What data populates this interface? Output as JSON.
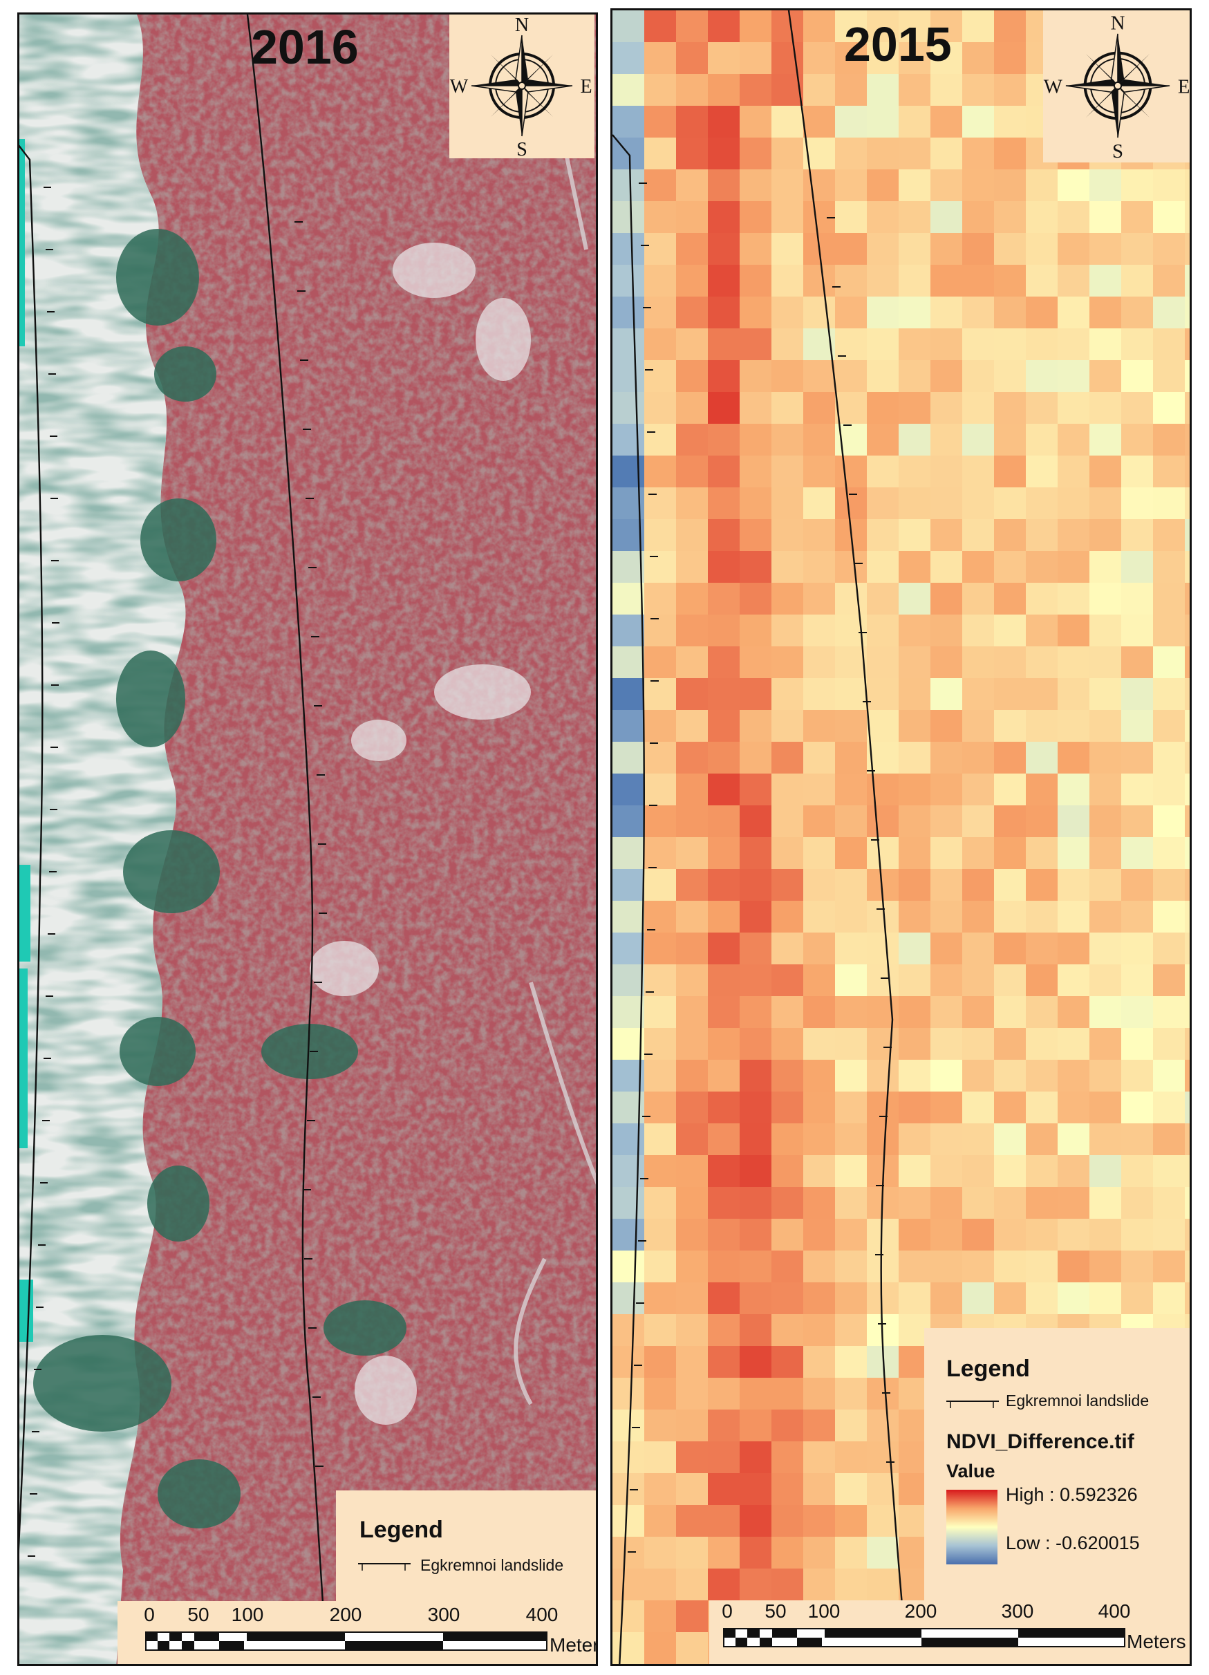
{
  "left_panel": {
    "year": "2016",
    "compass": {
      "north": "N",
      "south": "S",
      "east": "E",
      "west": "W"
    },
    "legend": {
      "title": "Legend",
      "line_label": "Egkremnoi landslide"
    },
    "scale": {
      "ticks": [
        "0",
        "50",
        "100",
        "200",
        "300",
        "400"
      ],
      "unit": "Meters"
    }
  },
  "right_panel": {
    "year": "2015",
    "compass": {
      "north": "N",
      "south": "S",
      "east": "E",
      "west": "W"
    },
    "legend": {
      "title": "Legend",
      "line_label": "Egkremnoi landslide",
      "raster_name": "NDVI_Difference.tif",
      "value_label": "Value",
      "high": "High : 0.592326",
      "low": "Low : -0.620015"
    },
    "scale": {
      "ticks": [
        "0",
        "50",
        "100",
        "200",
        "300",
        "400"
      ],
      "unit": "Meters"
    }
  },
  "colors": {
    "legend_background": "#fbe3c2",
    "ndvi_high": "#d7191c",
    "ndvi_mid": "#ffffbf",
    "ndvi_low": "#2b5aa5",
    "vegetation_false_color": "#b8505a",
    "sea": "#1fc9b4"
  }
}
